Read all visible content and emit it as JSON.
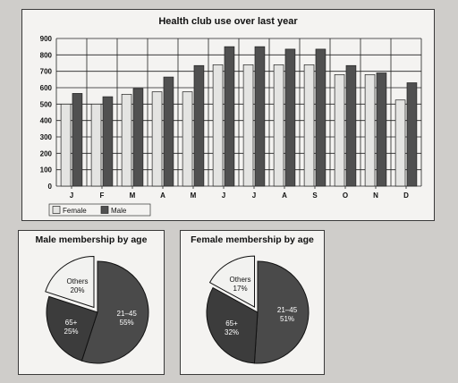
{
  "chart_data": [
    {
      "type": "bar",
      "title": "Health club use over last year",
      "xlabel": "",
      "ylabel": "",
      "categories": [
        "J",
        "F",
        "M",
        "A",
        "M",
        "J",
        "J",
        "A",
        "S",
        "O",
        "N",
        "D"
      ],
      "series": [
        {
          "name": "Female",
          "color": "#e4e4e2",
          "values": [
            500,
            500,
            560,
            575,
            575,
            740,
            740,
            740,
            740,
            680,
            680,
            525
          ]
        },
        {
          "name": "Male",
          "color": "#505050",
          "values": [
            565,
            545,
            595,
            665,
            735,
            850,
            850,
            835,
            835,
            735,
            690,
            630
          ]
        }
      ],
      "ylim": [
        0,
        900
      ],
      "yticks": [
        "0",
        "100",
        "200",
        "300",
        "400",
        "500",
        "600",
        "700",
        "800",
        "900"
      ],
      "grid": true,
      "legend": "bottom-left"
    },
    {
      "type": "pie",
      "title": "Male membership by age",
      "slices": [
        {
          "label": "Others",
          "value": 20,
          "value_label": "20%",
          "color": "#f2f2f0",
          "text_color": "#111111",
          "exploded": true
        },
        {
          "label": "21–45",
          "value": 55,
          "value_label": "55%",
          "color": "#4a4a4a",
          "text_color": "#ffffff",
          "exploded": false
        },
        {
          "label": "65+",
          "value": 25,
          "value_label": "25%",
          "color": "#3c3c3c",
          "text_color": "#ffffff",
          "exploded": false
        }
      ]
    },
    {
      "type": "pie",
      "title": "Female membership by age",
      "slices": [
        {
          "label": "Others",
          "value": 17,
          "value_label": "17%",
          "color": "#f2f2f0",
          "text_color": "#111111",
          "exploded": true
        },
        {
          "label": "21–45",
          "value": 51,
          "value_label": "51%",
          "color": "#4a4a4a",
          "text_color": "#ffffff",
          "exploded": false
        },
        {
          "label": "65+",
          "value": 32,
          "value_label": "32%",
          "color": "#3c3c3c",
          "text_color": "#ffffff",
          "exploded": false
        }
      ]
    }
  ]
}
